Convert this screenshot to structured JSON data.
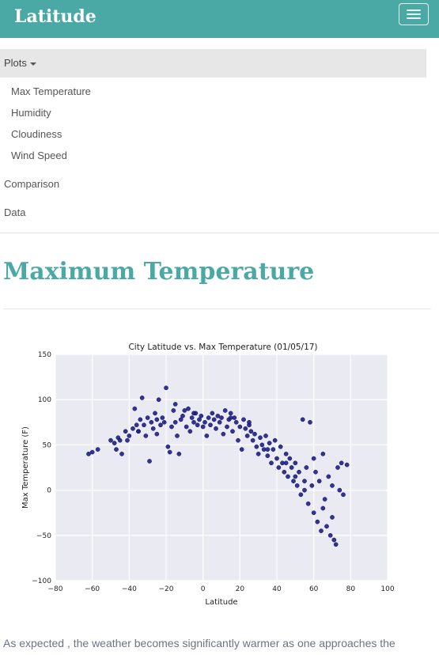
{
  "navbar": {
    "brand": "Latitude",
    "menu_icon": "hamburger-icon"
  },
  "menu": {
    "dropdown_label": "Plots",
    "dropdown_icon": "caret-down-icon",
    "dropdown_items": [
      "Max Temperature",
      "Humidity",
      "Cloudiness",
      "Wind Speed"
    ],
    "links": [
      "Comparison",
      "Data"
    ]
  },
  "main": {
    "title": "Maximum Temperature",
    "intro": "As expected , the weather becomes significantly warmer as one approaches the"
  },
  "colors": {
    "accent": "#4aa9a4",
    "plot_bg": "#eaeaf2",
    "marker": "#1f1f8c"
  },
  "chart_data": {
    "type": "scatter",
    "title": "City Latitude vs. Max Temperature (01/05/17)",
    "xlabel": "Latitude",
    "ylabel": "Max Temperature (F)",
    "xlim": [
      -80,
      100
    ],
    "ylim": [
      -100,
      150
    ],
    "xticks": [
      -80,
      -60,
      -40,
      -20,
      0,
      20,
      40,
      60,
      80,
      100
    ],
    "yticks": [
      -100,
      -50,
      0,
      50,
      100,
      150
    ],
    "grid": true,
    "points": [
      [
        -62,
        40
      ],
      [
        -60,
        42
      ],
      [
        -57,
        45
      ],
      [
        -50,
        55
      ],
      [
        -48,
        52
      ],
      [
        -47,
        45
      ],
      [
        -46,
        58
      ],
      [
        -44,
        40
      ],
      [
        -42,
        65
      ],
      [
        -41,
        55
      ],
      [
        -40,
        60
      ],
      [
        -38,
        68
      ],
      [
        -37,
        90
      ],
      [
        -36,
        72
      ],
      [
        -35,
        65
      ],
      [
        -34,
        78
      ],
      [
        -33,
        102
      ],
      [
        -32,
        72
      ],
      [
        -31,
        60
      ],
      [
        -30,
        80
      ],
      [
        -29,
        32
      ],
      [
        -28,
        75
      ],
      [
        -27,
        68
      ],
      [
        -26,
        85
      ],
      [
        -25,
        62
      ],
      [
        -24,
        100
      ],
      [
        -23,
        72
      ],
      [
        -22,
        80
      ],
      [
        -21,
        75
      ],
      [
        -20,
        113
      ],
      [
        -19,
        48
      ],
      [
        -18,
        42
      ],
      [
        -17,
        70
      ],
      [
        -16,
        88
      ],
      [
        -15,
        95
      ],
      [
        -14,
        60
      ],
      [
        -13,
        40
      ],
      [
        -12,
        78
      ],
      [
        -11,
        82
      ],
      [
        -10,
        88
      ],
      [
        -9,
        70
      ],
      [
        -8,
        90
      ],
      [
        -7,
        65
      ],
      [
        -6,
        80
      ],
      [
        -5,
        75
      ],
      [
        -4,
        85
      ],
      [
        -3,
        72
      ],
      [
        -2,
        78
      ],
      [
        -1,
        82
      ],
      [
        0,
        70
      ],
      [
        1,
        75
      ],
      [
        2,
        60
      ],
      [
        3,
        80
      ],
      [
        4,
        72
      ],
      [
        5,
        85
      ],
      [
        6,
        78
      ],
      [
        7,
        68
      ],
      [
        8,
        82
      ],
      [
        9,
        75
      ],
      [
        10,
        80
      ],
      [
        11,
        62
      ],
      [
        12,
        88
      ],
      [
        13,
        70
      ],
      [
        14,
        78
      ],
      [
        15,
        85
      ],
      [
        16,
        65
      ],
      [
        17,
        80
      ],
      [
        18,
        75
      ],
      [
        19,
        55
      ],
      [
        20,
        70
      ],
      [
        21,
        45
      ],
      [
        22,
        78
      ],
      [
        23,
        68
      ],
      [
        24,
        60
      ],
      [
        25,
        72
      ],
      [
        26,
        65
      ],
      [
        27,
        55
      ],
      [
        28,
        62
      ],
      [
        29,
        48
      ],
      [
        30,
        40
      ],
      [
        31,
        58
      ],
      [
        32,
        50
      ],
      [
        33,
        45
      ],
      [
        34,
        60
      ],
      [
        35,
        38
      ],
      [
        36,
        52
      ],
      [
        37,
        30
      ],
      [
        38,
        45
      ],
      [
        39,
        55
      ],
      [
        40,
        35
      ],
      [
        41,
        25
      ],
      [
        42,
        48
      ],
      [
        43,
        30
      ],
      [
        44,
        20
      ],
      [
        45,
        40
      ],
      [
        46,
        15
      ],
      [
        47,
        35
      ],
      [
        48,
        25
      ],
      [
        49,
        10
      ],
      [
        50,
        30
      ],
      [
        51,
        5
      ],
      [
        52,
        20
      ],
      [
        53,
        -5
      ],
      [
        54,
        78
      ],
      [
        55,
        10
      ],
      [
        56,
        25
      ],
      [
        57,
        -15
      ],
      [
        58,
        75
      ],
      [
        59,
        5
      ],
      [
        60,
        -25
      ],
      [
        61,
        20
      ],
      [
        62,
        -35
      ],
      [
        63,
        10
      ],
      [
        64,
        -45
      ],
      [
        65,
        40
      ],
      [
        66,
        -10
      ],
      [
        67,
        -40
      ],
      [
        68,
        15
      ],
      [
        69,
        -50
      ],
      [
        70,
        5
      ],
      [
        71,
        -55
      ],
      [
        72,
        -60
      ],
      [
        73,
        25
      ],
      [
        74,
        0
      ],
      [
        75,
        30
      ],
      [
        76,
        -5
      ],
      [
        78,
        28
      ],
      [
        60,
        35
      ],
      [
        65,
        -20
      ],
      [
        70,
        -30
      ],
      [
        55,
        0
      ],
      [
        50,
        15
      ],
      [
        45,
        30
      ],
      [
        35,
        45
      ],
      [
        25,
        75
      ],
      [
        15,
        80
      ],
      [
        -5,
        85
      ],
      [
        -15,
        75
      ],
      [
        -25,
        78
      ],
      [
        -35,
        65
      ],
      [
        -45,
        55
      ]
    ]
  }
}
